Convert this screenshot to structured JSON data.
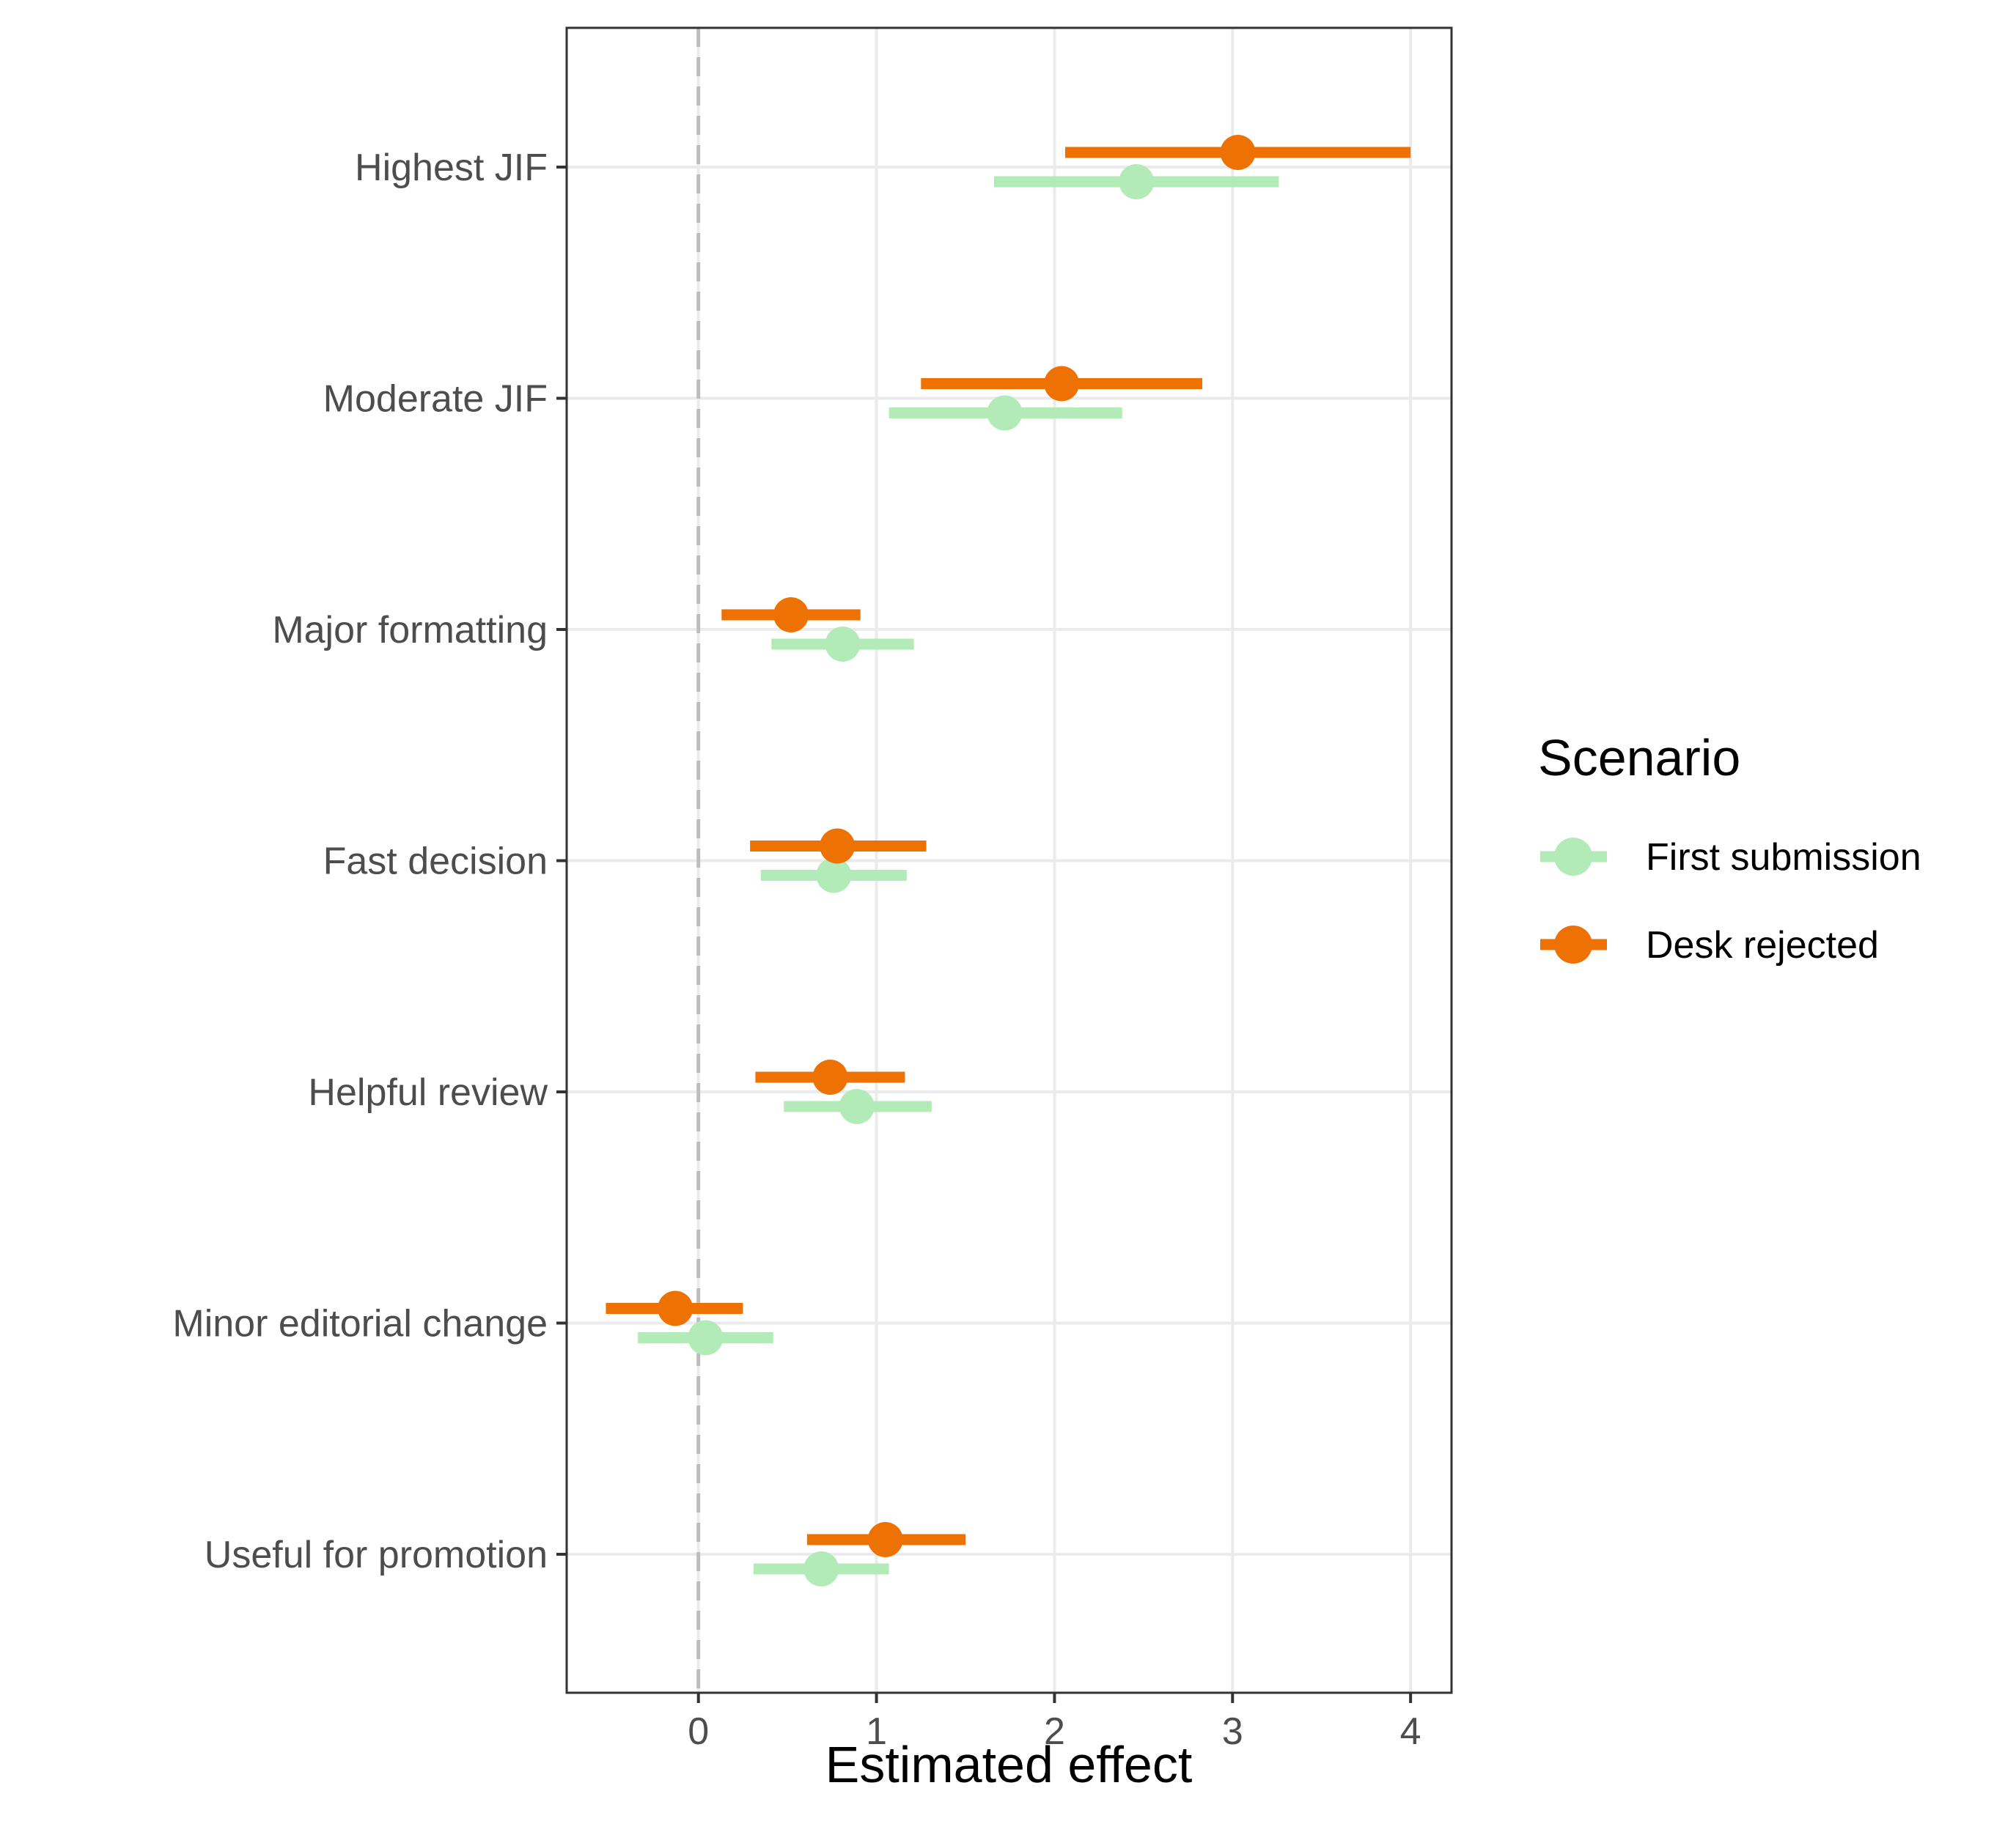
{
  "chart_data": {
    "type": "scatter",
    "xlabel": "Estimated effect",
    "ylabel": "",
    "xlim": [
      -0.74,
      4.23
    ],
    "xticks": [
      0,
      1,
      2,
      3,
      4
    ],
    "xtick_labels": [
      "0",
      "1",
      "2",
      "3",
      "4"
    ],
    "categories": [
      "Highest JIF",
      "Moderate JIF",
      "Major formatting",
      "Fast decision",
      "Helpful review",
      "Minor editorial change",
      "Useful for promotion"
    ],
    "reference_line": {
      "x": 0,
      "style": "dashed"
    },
    "grid": true,
    "legend": {
      "title": "Scenario",
      "position": "right"
    },
    "series": [
      {
        "name": "First submission",
        "color": "#b3ebb8",
        "estimate": [
          2.46,
          1.72,
          0.81,
          0.76,
          0.89,
          0.04,
          0.69
        ],
        "lower": [
          1.66,
          1.07,
          0.41,
          0.35,
          0.48,
          -0.34,
          0.31
        ],
        "upper": [
          3.26,
          2.38,
          1.21,
          1.17,
          1.31,
          0.42,
          1.07
        ]
      },
      {
        "name": "Desk rejected",
        "color": "#ee7203",
        "estimate": [
          3.03,
          2.04,
          0.52,
          0.78,
          0.74,
          -0.13,
          1.05
        ],
        "lower": [
          2.06,
          1.25,
          0.13,
          0.29,
          0.32,
          -0.52,
          0.61
        ],
        "upper": [
          4.0,
          2.83,
          0.91,
          1.28,
          1.16,
          0.25,
          1.5
        ]
      }
    ]
  }
}
